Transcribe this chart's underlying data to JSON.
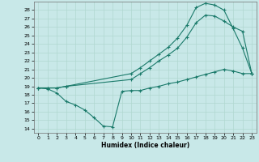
{
  "xlabel": "Humidex (Indice chaleur)",
  "bg_color": "#c8e8e8",
  "grid_color": "#b0d8d0",
  "line_color": "#1a7a6a",
  "xlim": [
    -0.5,
    23.5
  ],
  "ylim": [
    13.5,
    29.0
  ],
  "yticks": [
    14,
    15,
    16,
    17,
    18,
    19,
    20,
    21,
    22,
    23,
    24,
    25,
    26,
    27,
    28
  ],
  "xticks": [
    0,
    1,
    2,
    3,
    4,
    5,
    6,
    7,
    8,
    9,
    10,
    11,
    12,
    13,
    14,
    15,
    16,
    17,
    18,
    19,
    20,
    21,
    22,
    23
  ],
  "curve1_x": [
    0,
    1,
    2,
    3,
    10,
    11,
    12,
    13,
    14,
    15,
    16,
    17,
    18,
    19,
    20,
    21,
    22,
    23
  ],
  "curve1_y": [
    18.8,
    18.8,
    18.8,
    19.0,
    20.5,
    21.2,
    22.0,
    22.8,
    23.6,
    24.7,
    26.2,
    28.3,
    28.8,
    28.6,
    28.0,
    25.8,
    23.5,
    20.5
  ],
  "curve2_x": [
    0,
    1,
    2,
    3,
    10,
    11,
    12,
    13,
    14,
    15,
    16,
    17,
    18,
    19,
    20,
    21,
    22,
    23
  ],
  "curve2_y": [
    18.8,
    18.8,
    18.8,
    19.0,
    19.8,
    20.5,
    21.2,
    22.0,
    22.7,
    23.5,
    24.8,
    26.5,
    27.4,
    27.3,
    26.7,
    26.0,
    25.5,
    20.5
  ],
  "curve3_x": [
    0,
    1,
    2,
    3,
    4,
    5,
    6,
    7,
    8,
    9,
    10,
    11,
    12,
    13,
    14,
    15,
    16,
    17,
    18,
    19,
    20,
    21,
    22,
    23
  ],
  "curve3_y": [
    18.8,
    18.7,
    18.2,
    17.2,
    16.8,
    16.2,
    15.3,
    14.3,
    14.2,
    18.4,
    18.5,
    18.5,
    18.8,
    19.0,
    19.3,
    19.5,
    19.8,
    20.1,
    20.4,
    20.7,
    21.0,
    20.8,
    20.5,
    20.5
  ]
}
